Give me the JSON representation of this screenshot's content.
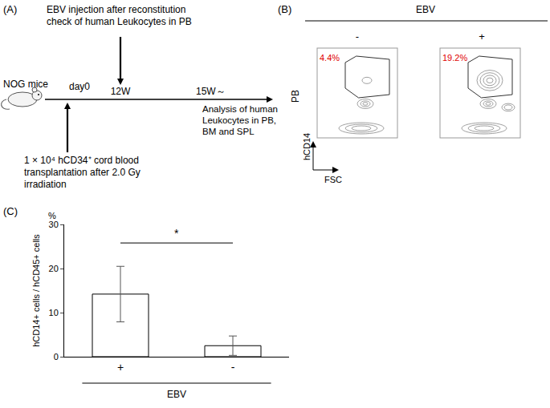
{
  "panel_a": {
    "label": "(A)",
    "top_note": [
      "EBV injection after reconstitution",
      "check of human Leukocytes in PB"
    ],
    "mouse": "NOG mice",
    "timeline": [
      "day0",
      "12W",
      "15W～"
    ],
    "bottom_note": [
      "1 × 10⁴ hCD34⁺ cord blood",
      "transplantation after 2.0 Gy",
      "irradiation"
    ],
    "right_note": [
      "Analysis of human",
      "Leukocytes in PB,",
      "BM and SPL"
    ]
  },
  "panel_b": {
    "label": "(B)",
    "header": "EBV",
    "conditions": [
      "-",
      "+"
    ],
    "row": "PB",
    "x_label": "FSC",
    "y_label": "hCD14",
    "gates": [
      "4.4%",
      "19.2%"
    ]
  },
  "chart_data": {
    "label": "(C)",
    "type": "bar",
    "categories": [
      "+",
      "-"
    ],
    "values": [
      14.2,
      2.5
    ],
    "error": [
      6.3,
      2.2
    ],
    "color": "#ffffff",
    "ylim": [
      0,
      30
    ],
    "yticks": [
      0,
      10,
      20,
      30
    ],
    "y_label": "hCD14+ cells / hCD45+ cells",
    "y_unit": "%",
    "x_label": "EBV",
    "significance": {
      "text": "*",
      "categories": [
        "+",
        "-"
      ]
    },
    "grid": false
  }
}
